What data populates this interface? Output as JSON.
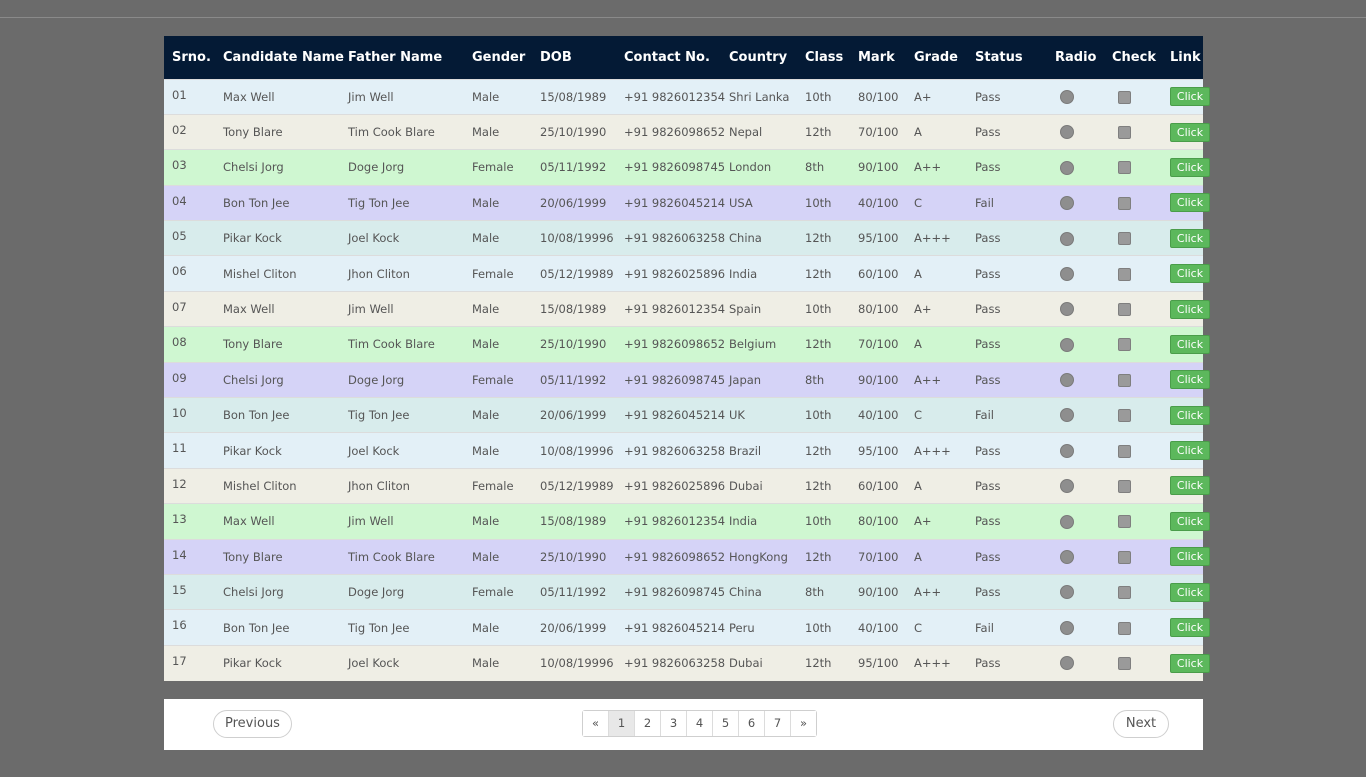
{
  "table": {
    "headers": [
      "Srno.",
      "Candidate Name",
      "Father Name",
      "Gender",
      "DOB",
      "Contact No.",
      "Country",
      "Class",
      "Mark",
      "Grade",
      "Status",
      "Radio",
      "Check",
      "Link"
    ],
    "link_label": "Click",
    "rows": [
      {
        "srno": "01",
        "name": "Max Well",
        "father": "Jim Well",
        "gender": "Male",
        "dob": "15/08/1989",
        "contact": "+91 9826012354",
        "country": "Shri Lanka",
        "class": "10th",
        "mark": "80/100",
        "grade": "A+",
        "status": "Pass"
      },
      {
        "srno": "02",
        "name": "Tony Blare",
        "father": "Tim Cook Blare",
        "gender": "Male",
        "dob": "25/10/1990",
        "contact": "+91 9826098652",
        "country": "Nepal",
        "class": "12th",
        "mark": "70/100",
        "grade": "A",
        "status": "Pass"
      },
      {
        "srno": "03",
        "name": "Chelsi Jorg",
        "father": "Doge Jorg",
        "gender": "Female",
        "dob": "05/11/1992",
        "contact": "+91 9826098745",
        "country": "London",
        "class": "8th",
        "mark": "90/100",
        "grade": "A++",
        "status": "Pass"
      },
      {
        "srno": "04",
        "name": "Bon Ton Jee",
        "father": "Tig Ton Jee",
        "gender": "Male",
        "dob": "20/06/1999",
        "contact": "+91 9826045214",
        "country": "USA",
        "class": "10th",
        "mark": "40/100",
        "grade": "C",
        "status": "Fail"
      },
      {
        "srno": "05",
        "name": "Pikar Kock",
        "father": "Joel Kock",
        "gender": "Male",
        "dob": "10/08/19996",
        "contact": "+91 9826063258",
        "country": "China",
        "class": "12th",
        "mark": "95/100",
        "grade": "A+++",
        "status": "Pass"
      },
      {
        "srno": "06",
        "name": "Mishel Cliton",
        "father": "Jhon Cliton",
        "gender": "Female",
        "dob": "05/12/19989",
        "contact": "+91 9826025896",
        "country": "India",
        "class": "12th",
        "mark": "60/100",
        "grade": "A",
        "status": "Pass"
      },
      {
        "srno": "07",
        "name": "Max Well",
        "father": "Jim Well",
        "gender": "Male",
        "dob": "15/08/1989",
        "contact": "+91 9826012354",
        "country": "Spain",
        "class": "10th",
        "mark": "80/100",
        "grade": "A+",
        "status": "Pass"
      },
      {
        "srno": "08",
        "name": "Tony Blare",
        "father": "Tim Cook Blare",
        "gender": "Male",
        "dob": "25/10/1990",
        "contact": "+91 9826098652",
        "country": "Belgium",
        "class": "12th",
        "mark": "70/100",
        "grade": "A",
        "status": "Pass"
      },
      {
        "srno": "09",
        "name": "Chelsi Jorg",
        "father": "Doge Jorg",
        "gender": "Female",
        "dob": "05/11/1992",
        "contact": "+91 9826098745",
        "country": "Japan",
        "class": "8th",
        "mark": "90/100",
        "grade": "A++",
        "status": "Pass"
      },
      {
        "srno": "10",
        "name": "Bon Ton Jee",
        "father": "Tig Ton Jee",
        "gender": "Male",
        "dob": "20/06/1999",
        "contact": "+91 9826045214",
        "country": "UK",
        "class": "10th",
        "mark": "40/100",
        "grade": "C",
        "status": "Fail"
      },
      {
        "srno": "11",
        "name": "Pikar Kock",
        "father": "Joel Kock",
        "gender": "Male",
        "dob": "10/08/19996",
        "contact": "+91 9826063258",
        "country": "Brazil",
        "class": "12th",
        "mark": "95/100",
        "grade": "A+++",
        "status": "Pass"
      },
      {
        "srno": "12",
        "name": "Mishel Cliton",
        "father": "Jhon Cliton",
        "gender": "Female",
        "dob": "05/12/19989",
        "contact": "+91 9826025896",
        "country": "Dubai",
        "class": "12th",
        "mark": "60/100",
        "grade": "A",
        "status": "Pass"
      },
      {
        "srno": "13",
        "name": "Max Well",
        "father": "Jim Well",
        "gender": "Male",
        "dob": "15/08/1989",
        "contact": "+91 9826012354",
        "country": "India",
        "class": "10th",
        "mark": "80/100",
        "grade": "A+",
        "status": "Pass"
      },
      {
        "srno": "14",
        "name": "Tony Blare",
        "father": "Tim Cook Blare",
        "gender": "Male",
        "dob": "25/10/1990",
        "contact": "+91 9826098652",
        "country": "HongKong",
        "class": "12th",
        "mark": "70/100",
        "grade": "A",
        "status": "Pass"
      },
      {
        "srno": "15",
        "name": "Chelsi Jorg",
        "father": "Doge Jorg",
        "gender": "Female",
        "dob": "05/11/1992",
        "contact": "+91 9826098745",
        "country": "China",
        "class": "8th",
        "mark": "90/100",
        "grade": "A++",
        "status": "Pass"
      },
      {
        "srno": "16",
        "name": "Bon Ton Jee",
        "father": "Tig Ton Jee",
        "gender": "Male",
        "dob": "20/06/1999",
        "contact": "+91 9826045214",
        "country": "Peru",
        "class": "10th",
        "mark": "40/100",
        "grade": "C",
        "status": "Fail"
      },
      {
        "srno": "17",
        "name": "Pikar Kock",
        "father": "Joel Kock",
        "gender": "Male",
        "dob": "10/08/19996",
        "contact": "+91 9826063258",
        "country": "Dubai",
        "class": "12th",
        "mark": "95/100",
        "grade": "A+++",
        "status": "Pass"
      }
    ]
  },
  "pager": {
    "previous_label": "Previous",
    "next_label": "Next",
    "first_symbol": "«",
    "last_symbol": "»",
    "pages": [
      "1",
      "2",
      "3",
      "4",
      "5",
      "6",
      "7"
    ],
    "active_page": "1"
  },
  "colors": {
    "header_bg": "#041a35",
    "button_green": "#5cb85c",
    "page_bg": "#6b6b6b"
  }
}
